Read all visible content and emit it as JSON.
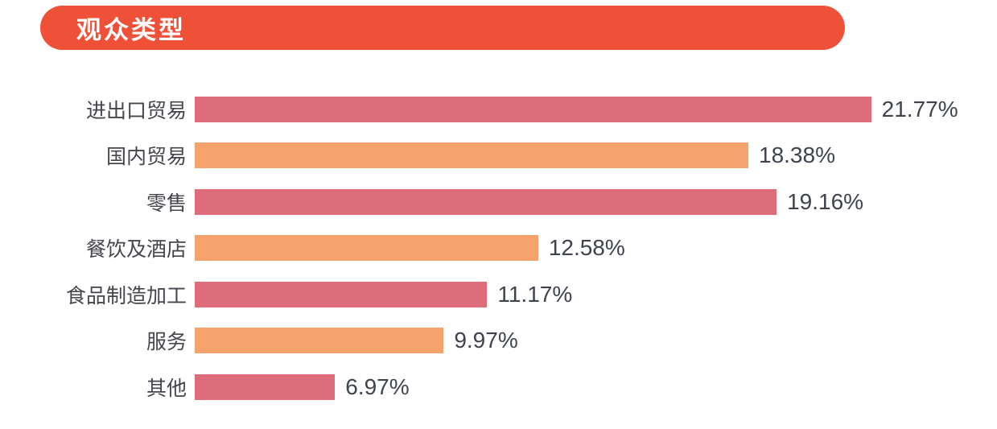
{
  "header": {
    "title": "观众类型",
    "background_color": "#ef5138",
    "text_color": "#ffffff"
  },
  "chart_data": {
    "type": "bar",
    "orientation": "horizontal",
    "title": "观众类型",
    "categories": [
      "进出口贸易",
      "国内贸易",
      "零售",
      "餐饮及酒店",
      "食品制造加工",
      "服务",
      "其他"
    ],
    "values": [
      21.77,
      18.38,
      19.16,
      12.58,
      11.17,
      9.97,
      6.97
    ],
    "value_labels": [
      "21.77%",
      "18.38%",
      "19.16%",
      "12.58%",
      "11.17%",
      "9.97%",
      "6.97%"
    ],
    "bar_colors": [
      "#dd6d7a",
      "#f5a36d",
      "#dd6d7a",
      "#f5a36d",
      "#dd6d7a",
      "#f5a36d",
      "#dd6d7a"
    ],
    "xlim": [
      3.1,
      22.2
    ],
    "xlabel": "",
    "ylabel": "",
    "grid": false,
    "legend": false
  },
  "colors": {
    "label_text": "#45454d",
    "value_text": "#3f434d",
    "background": "#ffffff"
  }
}
